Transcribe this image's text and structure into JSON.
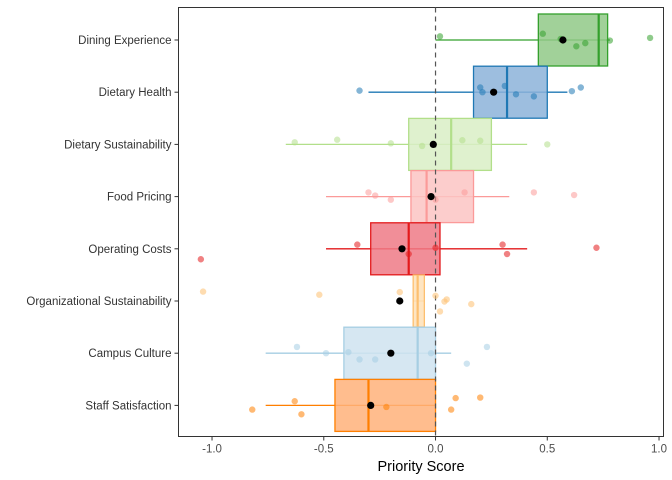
{
  "chart_data": {
    "type": "boxplot",
    "xlabel": "Priority Score",
    "xlim": [
      -1.15,
      1.02
    ],
    "x_ticks": [
      -1.0,
      -0.5,
      0.0,
      0.5,
      1.0
    ],
    "x_tick_labels": [
      "-1.0",
      "-0.5",
      "0.0",
      "0.5",
      "1.0"
    ],
    "reference_line": {
      "x": 0,
      "style": "dashed"
    },
    "grid": false,
    "legend": "none",
    "categories": [
      {
        "name": "Dining Experience",
        "color": "#33a02c",
        "fill": "#90c987",
        "whisker": [
          0.0,
          0.78
        ],
        "q1": 0.46,
        "median": 0.73,
        "q3": 0.77,
        "mean": 0.57,
        "points": [
          [
            0.48,
            0.12
          ],
          [
            0.02,
            0.07
          ],
          [
            0.96,
            0.04
          ],
          [
            0.56,
            0.02
          ],
          [
            0.78,
            -0.01
          ],
          [
            0.67,
            -0.06
          ],
          [
            0.63,
            -0.12
          ]
        ]
      },
      {
        "name": "Dietary Health",
        "color": "#1f78b4",
        "fill": "#8cb3d9",
        "whisker": [
          -0.3,
          0.59
        ],
        "q1": 0.17,
        "median": 0.32,
        "q3": 0.5,
        "mean": 0.26,
        "points": [
          [
            0.31,
            0.12
          ],
          [
            0.2,
            0.09
          ],
          [
            0.65,
            0.09
          ],
          [
            -0.34,
            0.03
          ],
          [
            0.61,
            0.02
          ],
          [
            0.21,
            0.0
          ],
          [
            0.36,
            -0.04
          ],
          [
            0.44,
            -0.08
          ]
        ]
      },
      {
        "name": "Dietary Sustainability",
        "color": "#b2df8a",
        "fill": "#d9efc5",
        "whisker": [
          -0.67,
          0.41
        ],
        "q1": -0.12,
        "median": 0.07,
        "q3": 0.25,
        "mean": -0.01,
        "points": [
          [
            -0.44,
            0.09
          ],
          [
            0.12,
            0.08
          ],
          [
            0.2,
            0.07
          ],
          [
            -0.63,
            0.04
          ],
          [
            -0.2,
            0.02
          ],
          [
            0.5,
            0.0
          ],
          [
            -0.06,
            -0.03
          ]
        ]
      },
      {
        "name": "Food Pricing",
        "color": "#fb9a99",
        "fill": "#fcc4c3",
        "whisker": [
          -0.49,
          0.33
        ],
        "q1": -0.11,
        "median": -0.04,
        "q3": 0.17,
        "mean": -0.02,
        "points": [
          [
            -0.3,
            0.08
          ],
          [
            0.13,
            0.08
          ],
          [
            0.44,
            0.08
          ],
          [
            -0.27,
            0.02
          ],
          [
            0.62,
            0.03
          ],
          [
            -0.2,
            -0.06
          ],
          [
            0.0,
            -0.06
          ]
        ]
      },
      {
        "name": "Operating Costs",
        "color": "#e31a1c",
        "fill": "#ee7a86",
        "whisker": [
          -0.49,
          0.41
        ],
        "q1": -0.29,
        "median": -0.12,
        "q3": 0.02,
        "mean": -0.15,
        "points": [
          [
            -0.35,
            0.08
          ],
          [
            0.0,
            0.02
          ],
          [
            0.3,
            0.08
          ],
          [
            0.72,
            0.02
          ],
          [
            -0.12,
            -0.1
          ],
          [
            0.32,
            -0.1
          ],
          [
            -1.05,
            -0.2
          ],
          [
            -0.15,
            0.0
          ]
        ]
      },
      {
        "name": "Organizational Sustainability",
        "color": "#fdbf6f",
        "fill": "#fee0b7",
        "whisker": [
          -0.1,
          -0.05
        ],
        "q1": -0.1,
        "median": -0.08,
        "q3": -0.05,
        "mean": -0.16,
        "points": [
          [
            -1.04,
            0.18
          ],
          [
            -0.52,
            0.12
          ],
          [
            -0.16,
            0.17
          ],
          [
            0.0,
            0.1
          ],
          [
            0.05,
            0.03
          ],
          [
            0.04,
            -0.01
          ],
          [
            0.16,
            -0.06
          ],
          [
            0.02,
            -0.2
          ]
        ]
      },
      {
        "name": "Campus Culture",
        "color": "#a6cee3",
        "fill": "#cfe3f0",
        "whisker": [
          -0.76,
          0.07
        ],
        "q1": -0.41,
        "median": -0.08,
        "q3": 0.0,
        "mean": -0.2,
        "points": [
          [
            -0.62,
            0.12
          ],
          [
            0.23,
            0.12
          ],
          [
            -0.49,
            0.0
          ],
          [
            -0.39,
            0.02
          ],
          [
            -0.02,
            0.0
          ],
          [
            -0.34,
            -0.12
          ],
          [
            -0.27,
            -0.12
          ],
          [
            0.14,
            -0.2
          ]
        ]
      },
      {
        "name": "Staff Satisfaction",
        "color": "#ff7f00",
        "fill": "#ffb27a",
        "whisker": [
          -0.76,
          0.0
        ],
        "q1": -0.45,
        "median": -0.3,
        "q3": 0.0,
        "mean": -0.29,
        "points": [
          [
            0.09,
            0.14
          ],
          [
            0.2,
            0.15
          ],
          [
            -0.63,
            0.08
          ],
          [
            -0.22,
            -0.03
          ],
          [
            -0.82,
            -0.08
          ],
          [
            0.07,
            -0.08
          ],
          [
            -0.6,
            -0.17
          ]
        ]
      }
    ]
  }
}
